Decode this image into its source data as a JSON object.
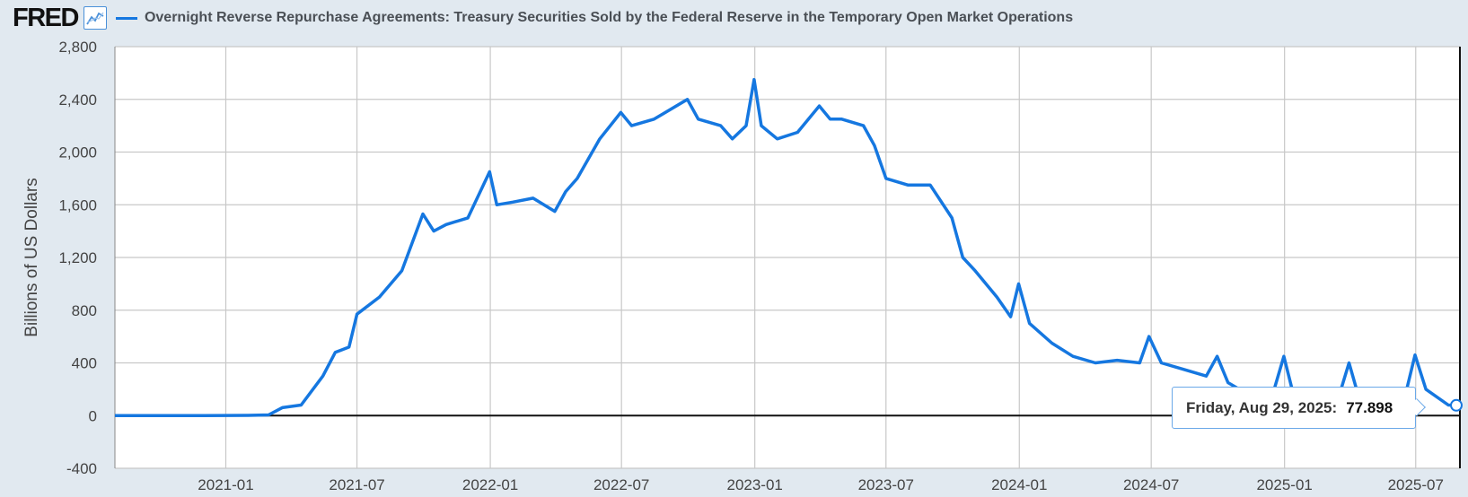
{
  "header": {
    "logo": "FRED",
    "logo_icon": "line-graph-icon",
    "series_title": "Overnight Reverse Repurchase Agreements: Treasury Securities Sold by the Federal Reserve in the Temporary Open Market Operations"
  },
  "colors": {
    "series": "#1577e0",
    "background": "#e1e9f0",
    "plot": "#ffffff",
    "grid": "#c8c8c8"
  },
  "tooltip": {
    "date": "Friday, Aug 29, 2025:",
    "value": "77.898"
  },
  "chart_data": {
    "type": "line",
    "title": "Overnight Reverse Repurchase Agreements: Treasury Securities Sold by the Federal Reserve in the Temporary Open Market Operations",
    "xlabel": "",
    "ylabel": "Billions of US Dollars",
    "ylim": [
      -400,
      2800
    ],
    "yticks": [
      -400,
      0,
      400,
      800,
      1200,
      1600,
      2000,
      2400,
      2800
    ],
    "ytick_labels": [
      "-400",
      "0",
      "400",
      "800",
      "1,200",
      "1,600",
      "2,000",
      "2,400",
      "2,800"
    ],
    "xlim": [
      "2020-08-01",
      "2025-08-31"
    ],
    "xticks": [
      "2021-01",
      "2021-07",
      "2022-01",
      "2022-07",
      "2023-01",
      "2023-07",
      "2024-01",
      "2024-07",
      "2025-01",
      "2025-07"
    ],
    "grid": true,
    "series": [
      {
        "name": "Overnight Reverse Repurchase Agreements",
        "points": [
          [
            "2020-08-01",
            0
          ],
          [
            "2020-12-01",
            0
          ],
          [
            "2021-02-01",
            2
          ],
          [
            "2021-03-01",
            5
          ],
          [
            "2021-03-20",
            60
          ],
          [
            "2021-04-15",
            80
          ],
          [
            "2021-05-15",
            300
          ],
          [
            "2021-06-01",
            480
          ],
          [
            "2021-06-20",
            520
          ],
          [
            "2021-07-01",
            770
          ],
          [
            "2021-08-01",
            900
          ],
          [
            "2021-09-01",
            1100
          ],
          [
            "2021-09-30",
            1530
          ],
          [
            "2021-10-15",
            1400
          ],
          [
            "2021-11-01",
            1450
          ],
          [
            "2021-12-01",
            1500
          ],
          [
            "2021-12-31",
            1850
          ],
          [
            "2022-01-10",
            1600
          ],
          [
            "2022-02-01",
            1620
          ],
          [
            "2022-03-01",
            1650
          ],
          [
            "2022-03-31",
            1550
          ],
          [
            "2022-04-15",
            1700
          ],
          [
            "2022-05-01",
            1800
          ],
          [
            "2022-06-01",
            2100
          ],
          [
            "2022-06-30",
            2300
          ],
          [
            "2022-07-15",
            2200
          ],
          [
            "2022-08-15",
            2250
          ],
          [
            "2022-09-30",
            2400
          ],
          [
            "2022-10-15",
            2250
          ],
          [
            "2022-11-15",
            2200
          ],
          [
            "2022-12-01",
            2100
          ],
          [
            "2022-12-20",
            2200
          ],
          [
            "2022-12-31",
            2550
          ],
          [
            "2023-01-10",
            2200
          ],
          [
            "2023-02-01",
            2100
          ],
          [
            "2023-03-01",
            2150
          ],
          [
            "2023-03-31",
            2350
          ],
          [
            "2023-04-15",
            2250
          ],
          [
            "2023-05-01",
            2250
          ],
          [
            "2023-05-31",
            2200
          ],
          [
            "2023-06-15",
            2050
          ],
          [
            "2023-07-01",
            1800
          ],
          [
            "2023-07-31",
            1750
          ],
          [
            "2023-08-31",
            1750
          ],
          [
            "2023-09-30",
            1500
          ],
          [
            "2023-10-15",
            1200
          ],
          [
            "2023-11-01",
            1100
          ],
          [
            "2023-12-01",
            900
          ],
          [
            "2023-12-20",
            750
          ],
          [
            "2023-12-31",
            1000
          ],
          [
            "2024-01-15",
            700
          ],
          [
            "2024-02-15",
            550
          ],
          [
            "2024-03-15",
            450
          ],
          [
            "2024-04-15",
            400
          ],
          [
            "2024-05-15",
            420
          ],
          [
            "2024-06-15",
            400
          ],
          [
            "2024-06-28",
            600
          ],
          [
            "2024-07-15",
            400
          ],
          [
            "2024-08-15",
            350
          ],
          [
            "2024-09-15",
            300
          ],
          [
            "2024-09-30",
            450
          ],
          [
            "2024-10-15",
            250
          ],
          [
            "2024-11-15",
            150
          ],
          [
            "2024-12-15",
            150
          ],
          [
            "2024-12-31",
            450
          ],
          [
            "2025-01-15",
            120
          ],
          [
            "2025-02-15",
            110
          ],
          [
            "2025-03-15",
            110
          ],
          [
            "2025-03-31",
            400
          ],
          [
            "2025-04-15",
            110
          ],
          [
            "2025-05-15",
            110
          ],
          [
            "2025-06-15",
            120
          ],
          [
            "2025-06-30",
            460
          ],
          [
            "2025-07-15",
            200
          ],
          [
            "2025-08-15",
            80
          ],
          [
            "2025-08-29",
            77.898
          ]
        ]
      }
    ]
  }
}
